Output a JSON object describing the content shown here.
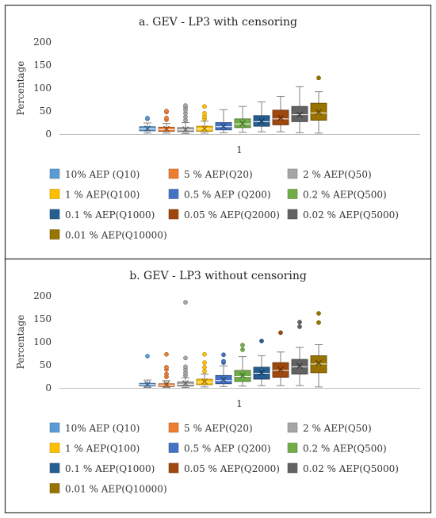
{
  "chart_data": [
    {
      "type": "box",
      "title": "a. GEV - LP3 with censoring",
      "ylabel": "Percentage",
      "xlabel": "",
      "categories": [
        "1"
      ],
      "ylim": [
        0,
        200
      ],
      "yticks": [
        0,
        50,
        100,
        150,
        200
      ],
      "grid": false,
      "legend_position": "bottom",
      "series": [
        {
          "name": "10% AEP (Q10)",
          "color": "#5b9bd5",
          "min": 2,
          "q1": 7,
          "median": 11,
          "mean": 12,
          "q3": 16,
          "max": 24,
          "outliers": [
            33,
            35
          ]
        },
        {
          "name": "5 % AEP(Q20)",
          "color": "#ed7d31",
          "min": 2,
          "q1": 6,
          "median": 10,
          "mean": 11,
          "q3": 15,
          "max": 23,
          "outliers": [
            31,
            35,
            48,
            50
          ]
        },
        {
          "name": "2 % AEP(Q50)",
          "color": "#a5a5a5",
          "min": 1,
          "q1": 5,
          "median": 9,
          "mean": 10,
          "q3": 14,
          "max": 25,
          "outliers": [
            30,
            37,
            45,
            52,
            58,
            62
          ]
        },
        {
          "name": "1 % AEP(Q100)",
          "color": "#ffc000",
          "min": 2,
          "q1": 6,
          "median": 11,
          "mean": 12,
          "q3": 17,
          "max": 28,
          "outliers": [
            33,
            38,
            45,
            60
          ]
        },
        {
          "name": "0.5 % AEP (Q200)",
          "color": "#4472c4",
          "min": 3,
          "q1": 9,
          "median": 16,
          "mean": 17,
          "q3": 25,
          "max": 53,
          "outliers": []
        },
        {
          "name": "0.2 % AEP(Q500)",
          "color": "#70ad47",
          "min": 4,
          "q1": 14,
          "median": 22,
          "mean": 23,
          "q3": 33,
          "max": 60,
          "outliers": []
        },
        {
          "name": "0.1 % AEP(Q1000)",
          "color": "#255e91",
          "min": 5,
          "q1": 17,
          "median": 27,
          "mean": 28,
          "q3": 40,
          "max": 70,
          "outliers": []
        },
        {
          "name": "0.05 % AEP(Q2000)",
          "color": "#9e480e",
          "min": 5,
          "q1": 20,
          "median": 33,
          "mean": 35,
          "q3": 52,
          "max": 82,
          "outliers": []
        },
        {
          "name": "0.02 % AEP(Q5000)",
          "color": "#636363",
          "min": 3,
          "q1": 27,
          "median": 42,
          "mean": 42,
          "q3": 60,
          "max": 103,
          "outliers": []
        },
        {
          "name": "0.01 % AEP(Q10000)",
          "color": "#997300",
          "min": 2,
          "q1": 30,
          "median": 46,
          "mean": 48,
          "q3": 67,
          "max": 92,
          "outliers": [
            122
          ]
        }
      ]
    },
    {
      "type": "box",
      "title": "b. GEV - LP3 without censoring",
      "ylabel": "Percentage",
      "xlabel": "",
      "categories": [
        "1"
      ],
      "ylim": [
        0,
        200
      ],
      "yticks": [
        0,
        50,
        100,
        150,
        200
      ],
      "grid": false,
      "legend_position": "bottom",
      "series": [
        {
          "name": "10% AEP (Q10)",
          "color": "#5b9bd5",
          "min": 1,
          "q1": 4,
          "median": 7,
          "mean": 8,
          "q3": 10,
          "max": 17,
          "outliers": [
            69
          ]
        },
        {
          "name": "5 % AEP(Q20)",
          "color": "#ed7d31",
          "min": 1,
          "q1": 3,
          "median": 6,
          "mean": 8,
          "q3": 9,
          "max": 16,
          "outliers": [
            24,
            30,
            40,
            45,
            73
          ]
        },
        {
          "name": "2 % AEP(Q50)",
          "color": "#a5a5a5",
          "min": 1,
          "q1": 4,
          "median": 8,
          "mean": 10,
          "q3": 13,
          "max": 22,
          "outliers": [
            27,
            33,
            40,
            46,
            65,
            186
          ]
        },
        {
          "name": "1 % AEP(Q100)",
          "color": "#ffc000",
          "min": 2,
          "q1": 7,
          "median": 12,
          "mean": 14,
          "q3": 19,
          "max": 30,
          "outliers": [
            36,
            45,
            55,
            73
          ]
        },
        {
          "name": "0.5 % AEP (Q200)",
          "color": "#4472c4",
          "min": 3,
          "q1": 9,
          "median": 16,
          "mean": 18,
          "q3": 27,
          "max": 48,
          "outliers": [
            55,
            58,
            72
          ]
        },
        {
          "name": "0.2 % AEP(Q500)",
          "color": "#70ad47",
          "min": 4,
          "q1": 14,
          "median": 25,
          "mean": 27,
          "q3": 38,
          "max": 68,
          "outliers": [
            83,
            93
          ]
        },
        {
          "name": "0.1 % AEP(Q1000)",
          "color": "#255e91",
          "min": 5,
          "q1": 19,
          "median": 32,
          "mean": 33,
          "q3": 45,
          "max": 70,
          "outliers": [
            102
          ]
        },
        {
          "name": "0.05 % AEP(Q2000)",
          "color": "#9e480e",
          "min": 5,
          "q1": 23,
          "median": 38,
          "mean": 40,
          "q3": 55,
          "max": 78,
          "outliers": [
            120
          ]
        },
        {
          "name": "0.02 % AEP(Q5000)",
          "color": "#636363",
          "min": 5,
          "q1": 30,
          "median": 46,
          "mean": 48,
          "q3": 62,
          "max": 88,
          "outliers": [
            133,
            143
          ]
        },
        {
          "name": "0.01 % AEP(Q10000)",
          "color": "#997300",
          "min": 2,
          "q1": 33,
          "median": 52,
          "mean": 54,
          "q3": 70,
          "max": 94,
          "outliers": [
            142,
            162
          ]
        }
      ]
    }
  ]
}
